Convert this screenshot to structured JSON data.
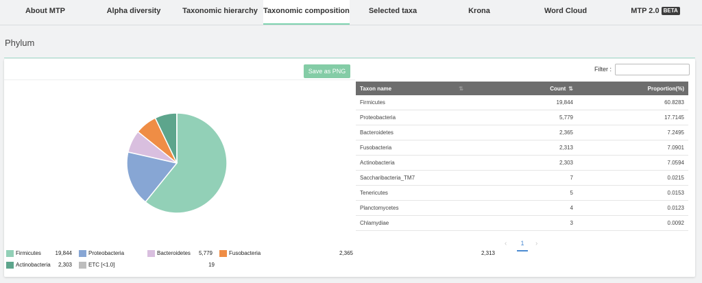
{
  "tabs": [
    {
      "label": "About MTP",
      "active": false
    },
    {
      "label": "Alpha diversity",
      "active": false
    },
    {
      "label": "Taxonomic hierarchy",
      "active": false
    },
    {
      "label": "Taxonomic composition",
      "active": true
    },
    {
      "label": "Selected taxa",
      "active": false
    },
    {
      "label": "Krona",
      "active": false
    },
    {
      "label": "Word Cloud",
      "active": false
    },
    {
      "label": "MTP 2.0",
      "badge": "BETA",
      "active": false
    }
  ],
  "section": {
    "title": "Phylum"
  },
  "toolbar": {
    "save_label": "Save as PNG"
  },
  "filter": {
    "label": "Filter :",
    "value": ""
  },
  "table": {
    "columns": [
      "Taxon name",
      "Count",
      "Proportion(%)"
    ],
    "rows": [
      [
        "Firmicutes",
        "19,844",
        "60.8283"
      ],
      [
        "Proteobacteria",
        "5,779",
        "17.7145"
      ],
      [
        "Bacteroidetes",
        "2,365",
        "7.2495"
      ],
      [
        "Fusobacteria",
        "2,313",
        "7.0901"
      ],
      [
        "Actinobacteria",
        "2,303",
        "7.0594"
      ],
      [
        "Saccharibacteria_TM7",
        "7",
        "0.0215"
      ],
      [
        "Tenericutes",
        "5",
        "0.0153"
      ],
      [
        "Planctomycetes",
        "4",
        "0.0123"
      ],
      [
        "Chlamydiae",
        "3",
        "0.0092"
      ]
    ]
  },
  "pagination": {
    "current": "1",
    "prev_icon": "chevron-left-icon",
    "next_icon": "chevron-right-icon"
  },
  "chart_data": {
    "type": "pie",
    "slices": [
      {
        "name": "Firmicutes",
        "value": 19844,
        "label": "19,844",
        "color": "#92d0b7"
      },
      {
        "name": "Proteobacteria",
        "value": 5779,
        "label": "5,779",
        "color": "#87a6d4"
      },
      {
        "name": "Bacteroidetes",
        "value": 2365,
        "label": "2,365",
        "color": "#d9bfdf"
      },
      {
        "name": "Fusobacteria",
        "value": 2313,
        "label": "2,313",
        "color": "#ef8d45"
      },
      {
        "name": "Actinobacteria",
        "value": 2303,
        "label": "2,303",
        "color": "#5da58c"
      },
      {
        "name": "ETC [<1.0]",
        "value": 19,
        "label": "19",
        "color": "#bdbdbd"
      }
    ],
    "legend_position": "bottom-left"
  }
}
